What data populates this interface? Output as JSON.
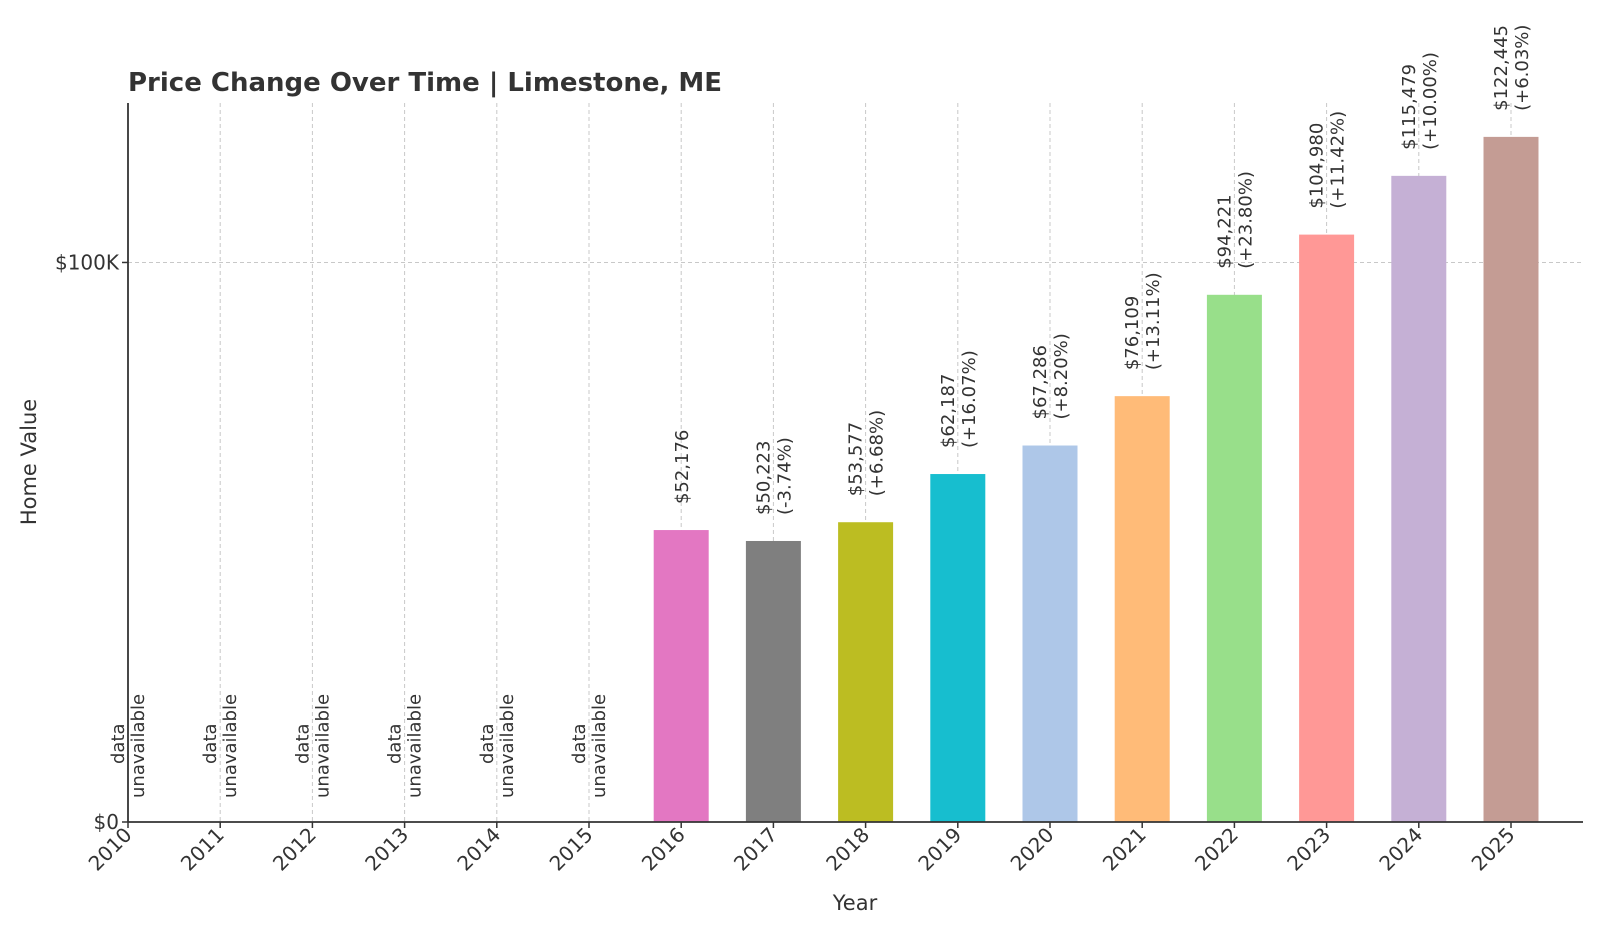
{
  "chart_data": {
    "type": "bar",
    "title": "Price Change Over Time | Limestone, ME",
    "xlabel": "Year",
    "ylabel": "Home Value",
    "ylim": [
      0,
      128500
    ],
    "yticks": [
      {
        "value": 0,
        "label": "$0"
      },
      {
        "value": 100000,
        "label": "$100K"
      }
    ],
    "grid": true,
    "categories": [
      "2010",
      "2011",
      "2012",
      "2013",
      "2014",
      "2015",
      "2016",
      "2017",
      "2018",
      "2019",
      "2020",
      "2021",
      "2022",
      "2023",
      "2024",
      "2025"
    ],
    "values": [
      null,
      null,
      null,
      null,
      null,
      null,
      52176,
      50223,
      53577,
      62187,
      67286,
      76109,
      94221,
      104980,
      115479,
      122445
    ],
    "value_labels": [
      "",
      "",
      "",
      "",
      "",
      "",
      "$52,176",
      "$50,223",
      "$53,577",
      "$62,187",
      "$67,286",
      "$76,109",
      "$94,221",
      "$104,980",
      "$115,479",
      "$122,445"
    ],
    "change_labels": [
      "",
      "",
      "",
      "",
      "",
      "",
      "",
      "(-3.74%)",
      "(+6.68%)",
      "(+16.07%)",
      "(+8.20%)",
      "(+13.11%)",
      "(+23.80%)",
      "(+11.42%)",
      "(+10.00%)",
      "(+6.03%)"
    ],
    "unavailable_label": [
      "data",
      "unavailable"
    ],
    "colors": [
      "#1f77b4",
      "#ff7f0e",
      "#2ca02c",
      "#d62728",
      "#9467bd",
      "#8c564b",
      "#e377c2",
      "#7f7f7f",
      "#bcbd22",
      "#17becf",
      "#aec7e8",
      "#ffbb78",
      "#98df8a",
      "#ff9896",
      "#c5b0d5",
      "#c49c94"
    ]
  }
}
